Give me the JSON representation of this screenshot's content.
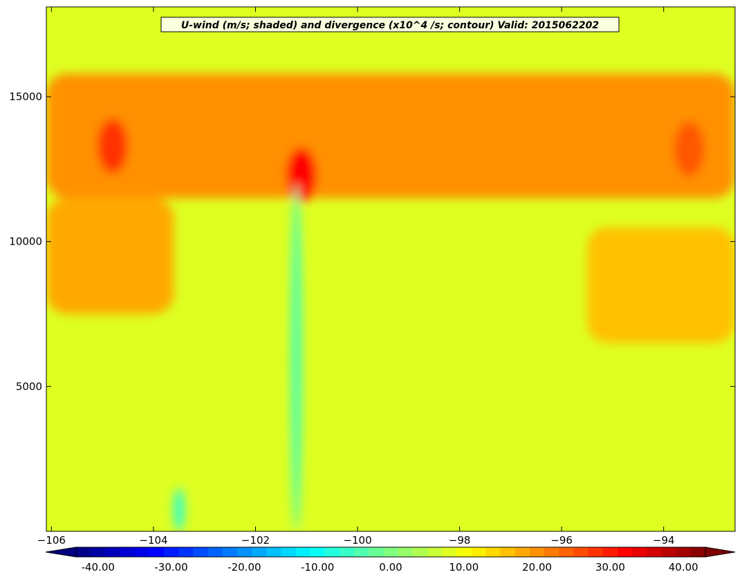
{
  "chart_data": {
    "type": "heatmap",
    "title": "U-wind (m/s; shaded) and divergence (x10^4 /s; contour) Valid: 2015062202",
    "xlabel": "",
    "ylabel": "",
    "xlim": [
      -106.1,
      -92.6
    ],
    "ylim": [
      0,
      18100
    ],
    "x_ticks": [
      -106,
      -104,
      -102,
      -100,
      -98,
      -96,
      -94
    ],
    "x_tick_labels": [
      "−106",
      "−104",
      "−102",
      "−100",
      "−98",
      "−96",
      "−94"
    ],
    "y_ticks": [
      5000,
      10000,
      15000
    ],
    "y_tick_labels": [
      "5000",
      "10000",
      "15000"
    ],
    "colorbar": {
      "min": -43,
      "max": 43,
      "step": 2,
      "ticks": [
        -40,
        -30,
        -20,
        -10,
        0,
        10,
        20,
        30,
        40
      ],
      "tick_labels": [
        "-40.00",
        "-30.00",
        "-20.00",
        "-10.00",
        "0.00",
        "10.00",
        "20.00",
        "30.00",
        "40.00"
      ],
      "extend": "both",
      "colormap": "jet"
    },
    "field": {
      "background_value": 8,
      "features": [
        {
          "name": "upper jet band",
          "x_range": [
            -106.1,
            -92.6
          ],
          "height_range": [
            11500,
            15800
          ],
          "value": 20
        },
        {
          "name": "jet maximum core",
          "x": -101.1,
          "height": 12300,
          "value": 32
        },
        {
          "name": "western jet core",
          "x": -104.8,
          "height": 13300,
          "value": 28
        },
        {
          "name": "eastern jet core",
          "x": -93.5,
          "height": 13200,
          "value": 25
        },
        {
          "name": "narrow updraft column",
          "x": -101.2,
          "height_range": [
            0,
            12000
          ],
          "value": -4
        },
        {
          "name": "low-level easterly pocket",
          "x": -103.5,
          "height_range": [
            0,
            1500
          ],
          "value": -6
        },
        {
          "name": "western mid-level band",
          "x_range": [
            -106.1,
            -103.6
          ],
          "height_range": [
            7500,
            11500
          ],
          "value": 18
        },
        {
          "name": "eastern mid-level band",
          "x_range": [
            -95.5,
            -92.6
          ],
          "height_range": [
            6500,
            10500
          ],
          "value": 16
        }
      ]
    }
  }
}
